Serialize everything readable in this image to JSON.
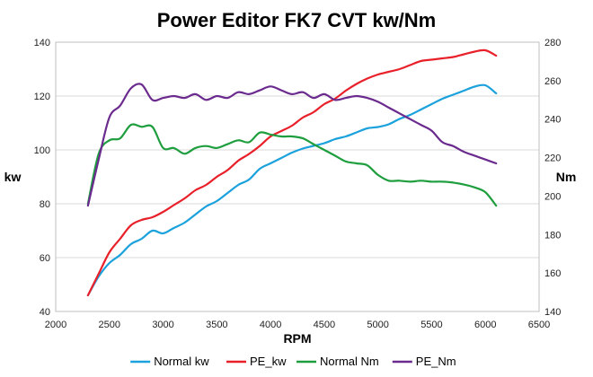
{
  "chart_data": {
    "type": "line",
    "title": "Power Editor FK7 CVT kw/Nm",
    "xlabel": "RPM",
    "ylabel": "kw",
    "y2label": "Nm",
    "xlim": [
      2000,
      6500
    ],
    "ylim": [
      40,
      140
    ],
    "y2lim": [
      140,
      280
    ],
    "xticks": [
      "2000",
      "2500",
      "3000",
      "3500",
      "4000",
      "4500",
      "5000",
      "5500",
      "6000",
      "6500"
    ],
    "yticks": [
      "40",
      "60",
      "80",
      "100",
      "120",
      "140"
    ],
    "y2ticks": [
      "140",
      "160",
      "180",
      "200",
      "220",
      "240",
      "260",
      "280"
    ],
    "grid": "horizontal",
    "legend": "bottom",
    "series": [
      {
        "name": "Normal kw",
        "axis": "left",
        "color": "#1ba1dc",
        "x": [
          2300,
          2400,
          2500,
          2600,
          2700,
          2800,
          2900,
          3000,
          3100,
          3200,
          3300,
          3400,
          3500,
          3600,
          3700,
          3800,
          3900,
          4000,
          4100,
          4200,
          4300,
          4400,
          4500,
          4600,
          4700,
          4800,
          4900,
          5000,
          5100,
          5200,
          5300,
          5400,
          5500,
          5600,
          5700,
          5800,
          5900,
          6000,
          6100
        ],
        "y": [
          46,
          53,
          58,
          61,
          65,
          67,
          70,
          69,
          71,
          73,
          76,
          79,
          81,
          84,
          87,
          89,
          93,
          95,
          97,
          99,
          100.5,
          101.5,
          102.5,
          104,
          105,
          106.5,
          108,
          108.5,
          109.5,
          111.5,
          113,
          115,
          117,
          119,
          120.5,
          122,
          123.5,
          124,
          121
        ]
      },
      {
        "name": "PE_kw",
        "axis": "left",
        "color": "#e8202a",
        "x": [
          2300,
          2400,
          2500,
          2600,
          2700,
          2800,
          2900,
          3000,
          3100,
          3200,
          3300,
          3400,
          3500,
          3600,
          3700,
          3800,
          3900,
          4000,
          4100,
          4200,
          4300,
          4400,
          4500,
          4600,
          4700,
          4800,
          4900,
          5000,
          5100,
          5200,
          5300,
          5400,
          5500,
          5600,
          5700,
          5800,
          5900,
          6000,
          6100
        ],
        "y": [
          46,
          54,
          62,
          67,
          72,
          74,
          75,
          77,
          79.5,
          82,
          85,
          87,
          90,
          92.5,
          96,
          98.5,
          101.5,
          105,
          107,
          109,
          112,
          114,
          117,
          119,
          122,
          124.5,
          126.5,
          128,
          129,
          130,
          131.5,
          133,
          133.5,
          134,
          134.5,
          135.5,
          136.5,
          137,
          135
        ]
      },
      {
        "name": "Normal Nm",
        "axis": "right",
        "color": "#1e9e3e",
        "x": [
          2300,
          2400,
          2500,
          2600,
          2700,
          2800,
          2900,
          3000,
          3100,
          3200,
          3300,
          3400,
          3500,
          3600,
          3700,
          3800,
          3900,
          4000,
          4100,
          4200,
          4300,
          4400,
          4500,
          4600,
          4700,
          4800,
          4900,
          5000,
          5100,
          5200,
          5300,
          5400,
          5500,
          5600,
          5700,
          5800,
          5900,
          6000,
          6100
        ],
        "y": [
          196,
          222,
          229,
          230,
          237,
          236,
          236,
          225,
          225,
          222,
          225,
          226,
          225,
          227,
          229,
          228,
          233,
          232,
          231,
          231,
          230,
          227,
          224,
          221,
          218,
          217,
          216,
          211,
          208,
          208,
          207.5,
          208,
          207.5,
          207.5,
          207,
          206,
          204.5,
          202,
          195
        ]
      },
      {
        "name": "PE_Nm",
        "axis": "right",
        "color": "#6a2a8e",
        "x": [
          2300,
          2400,
          2500,
          2600,
          2700,
          2800,
          2900,
          3000,
          3100,
          3200,
          3300,
          3400,
          3500,
          3600,
          3700,
          3800,
          3900,
          4000,
          4100,
          4200,
          4300,
          4400,
          4500,
          4600,
          4700,
          4800,
          4900,
          5000,
          5100,
          5200,
          5300,
          5400,
          5500,
          5600,
          5700,
          5800,
          5900,
          6000,
          6100
        ],
        "y": [
          195,
          219,
          241,
          247,
          256,
          258,
          250,
          251,
          252,
          251,
          253,
          250,
          252,
          251,
          254,
          253,
          255,
          257,
          255,
          253,
          254,
          251,
          253,
          250,
          251,
          252,
          251,
          249,
          246,
          243,
          240,
          237,
          234,
          228,
          226,
          223,
          221,
          219,
          217
        ]
      }
    ]
  }
}
